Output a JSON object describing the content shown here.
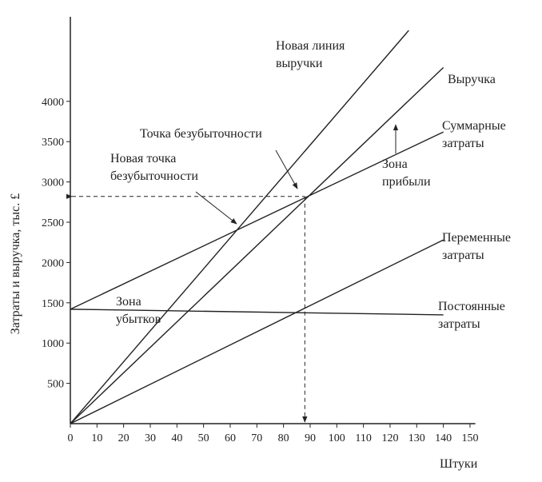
{
  "chart_data": {
    "type": "line",
    "x_label": "Штуки",
    "y_label": "Затраты и выручка, тыс. £",
    "xlim": [
      0,
      152
    ],
    "ylim": [
      0,
      5050
    ],
    "xticks": [
      0,
      10,
      20,
      30,
      40,
      50,
      60,
      70,
      80,
      90,
      100,
      110,
      120,
      130,
      140,
      150
    ],
    "yticks": [
      500,
      1000,
      1500,
      2000,
      2500,
      3000,
      3500,
      4000
    ],
    "color": "#222222",
    "series": [
      {
        "name": "Новая линия выручки",
        "x": [
          0,
          127
        ],
        "values": [
          0,
          4880
        ]
      },
      {
        "name": "Выручка",
        "x": [
          0,
          140
        ],
        "values": [
          0,
          4420
        ]
      },
      {
        "name": "Суммарные затраты",
        "x": [
          0,
          140
        ],
        "values": [
          1420,
          3620
        ]
      },
      {
        "name": "Переменные затраты",
        "x": [
          0,
          140
        ],
        "values": [
          0,
          2280
        ]
      },
      {
        "name": "Постоянные затраты",
        "x": [
          0,
          140
        ],
        "values": [
          1420,
          1350
        ]
      }
    ],
    "break_even": {
      "x": 88,
      "y": 2820
    },
    "annotations": [
      "Точка безубыточности",
      "Новая точка безубыточности",
      "Зона прибыли",
      "Зона убытков"
    ]
  }
}
